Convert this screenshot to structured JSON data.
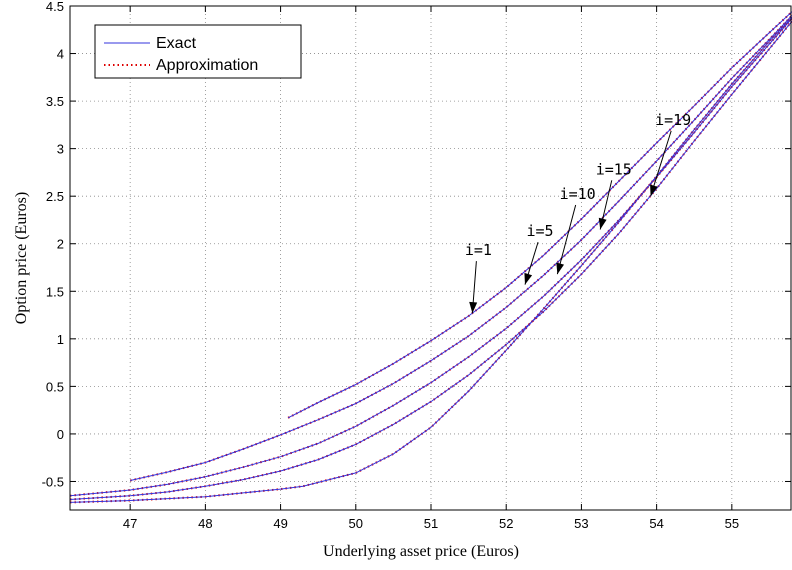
{
  "chart_data": {
    "type": "line",
    "xlabel": "Underlying asset price (Euros)",
    "ylabel": "Option price (Euros)",
    "xlim": [
      46.2,
      55.8
    ],
    "ylim": [
      -0.8,
      4.5
    ],
    "xticks": [
      47,
      48,
      49,
      50,
      51,
      52,
      53,
      54,
      55
    ],
    "yticks": [
      -0.5,
      0,
      0.5,
      1,
      1.5,
      2,
      2.5,
      3,
      3.5,
      4,
      4.5
    ],
    "xtick_labels": [
      "47",
      "48",
      "49",
      "50",
      "51",
      "52",
      "53",
      "54",
      "55"
    ],
    "ytick_labels": [
      "-0.5",
      "0",
      "0.5",
      "1",
      "1.5",
      "2",
      "2.5",
      "3",
      "3.5",
      "4",
      "4.5"
    ],
    "grid": true,
    "legend": {
      "position": "top-left",
      "entries": [
        {
          "label": "Exact",
          "style": "solid",
          "color": "#3333dd"
        },
        {
          "label": "Approximation",
          "style": "dotted",
          "color": "#dd0000"
        }
      ]
    },
    "series": [
      {
        "label": "i=1",
        "x": [
          49.1,
          49.5,
          50.0,
          50.5,
          51.0,
          51.5,
          52.0,
          52.5,
          53.0,
          53.5,
          54.0,
          54.5,
          55.0,
          55.5,
          55.8
        ],
        "y": [
          0.17,
          0.33,
          0.52,
          0.74,
          0.98,
          1.24,
          1.54,
          1.88,
          2.26,
          2.66,
          3.06,
          3.45,
          3.85,
          4.22,
          4.44
        ]
      },
      {
        "label": "i=5",
        "x": [
          47.0,
          47.5,
          48.0,
          48.5,
          49.0,
          49.5,
          50.0,
          50.5,
          51.0,
          51.5,
          52.0,
          52.5,
          53.0,
          53.5,
          54.0,
          54.5,
          55.0,
          55.5,
          55.8
        ],
        "y": [
          -0.49,
          -0.4,
          -0.3,
          -0.16,
          -0.01,
          0.15,
          0.32,
          0.53,
          0.77,
          1.03,
          1.33,
          1.67,
          2.04,
          2.45,
          2.87,
          3.3,
          3.74,
          4.15,
          4.4
        ]
      },
      {
        "label": "i=10",
        "x": [
          46.2,
          47.0,
          47.5,
          48.0,
          48.5,
          49.0,
          49.5,
          50.0,
          50.5,
          51.0,
          51.5,
          52.0,
          52.5,
          53.0,
          53.5,
          54.0,
          54.5,
          55.0,
          55.5,
          55.8
        ],
        "y": [
          -0.65,
          -0.59,
          -0.53,
          -0.45,
          -0.35,
          -0.24,
          -0.1,
          0.08,
          0.3,
          0.54,
          0.81,
          1.11,
          1.45,
          1.83,
          2.25,
          2.7,
          3.17,
          3.65,
          4.1,
          4.37
        ]
      },
      {
        "label": "i=15",
        "x": [
          46.2,
          47.0,
          47.5,
          48.0,
          48.5,
          49.0,
          49.5,
          50.0,
          50.5,
          51.0,
          51.5,
          52.0,
          52.5,
          53.0,
          53.5,
          54.0,
          54.5,
          55.0,
          55.5,
          55.8
        ],
        "y": [
          -0.69,
          -0.65,
          -0.61,
          -0.55,
          -0.48,
          -0.39,
          -0.27,
          -0.11,
          0.1,
          0.34,
          0.62,
          0.94,
          1.29,
          1.68,
          2.11,
          2.58,
          3.08,
          3.57,
          4.05,
          4.34
        ]
      },
      {
        "label": "i=19",
        "x": [
          46.2,
          47.0,
          47.5,
          48.0,
          48.5,
          49.0,
          49.3,
          50.0,
          50.5,
          51.0,
          51.5,
          52.0,
          52.5,
          53.0,
          53.5,
          54.0,
          54.5,
          55.0,
          55.5,
          55.8
        ],
        "y": [
          -0.72,
          -0.7,
          -0.68,
          -0.66,
          -0.62,
          -0.58,
          -0.55,
          -0.41,
          -0.21,
          0.07,
          0.45,
          0.88,
          1.32,
          1.77,
          2.23,
          2.71,
          3.2,
          3.68,
          4.13,
          4.38
        ]
      }
    ],
    "annotations": [
      {
        "text": "i=1",
        "text_x": 51.63,
        "text_y": 1.88,
        "arrow_x": 51.55,
        "arrow_y": 1.27
      },
      {
        "text": "i=5",
        "text_x": 52.45,
        "text_y": 2.08,
        "arrow_x": 52.25,
        "arrow_y": 1.57
      },
      {
        "text": "i=10",
        "text_x": 52.95,
        "text_y": 2.47,
        "arrow_x": 52.68,
        "arrow_y": 1.68
      },
      {
        "text": "i=15",
        "text_x": 53.43,
        "text_y": 2.73,
        "arrow_x": 53.25,
        "arrow_y": 2.15
      },
      {
        "text": "i=19",
        "text_x": 54.22,
        "text_y": 3.25,
        "arrow_x": 53.92,
        "arrow_y": 2.5
      }
    ]
  }
}
